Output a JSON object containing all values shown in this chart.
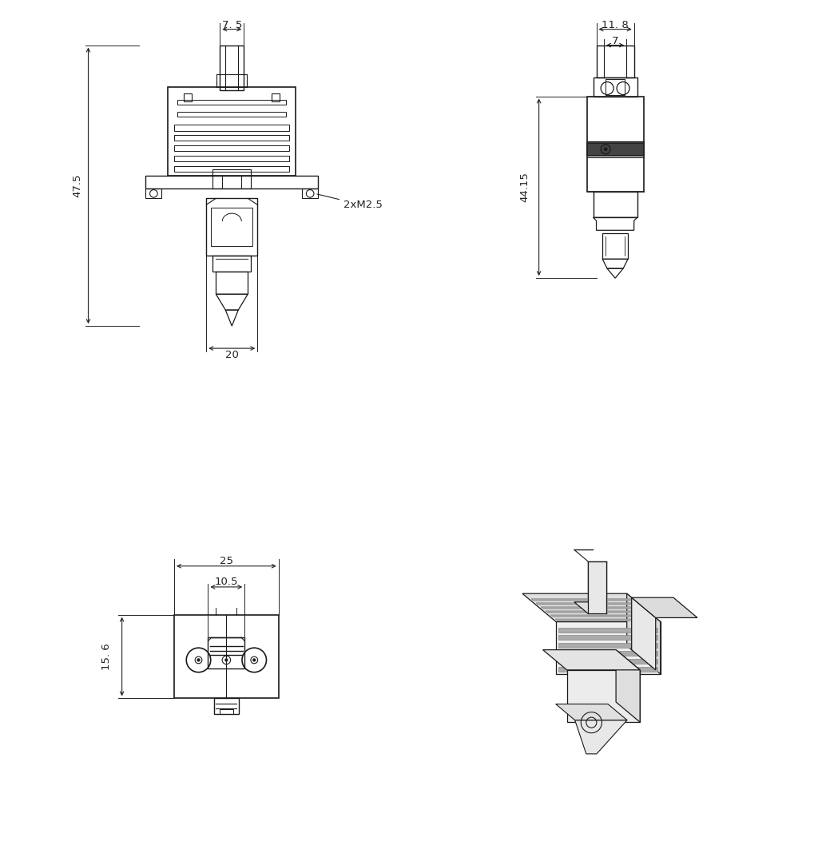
{
  "bg_color": "#ffffff",
  "line_color": "#1a1a1a",
  "dim_color": "#222222",
  "font_size_dim": 9.5,
  "fig_width": 10.2,
  "fig_height": 10.53
}
